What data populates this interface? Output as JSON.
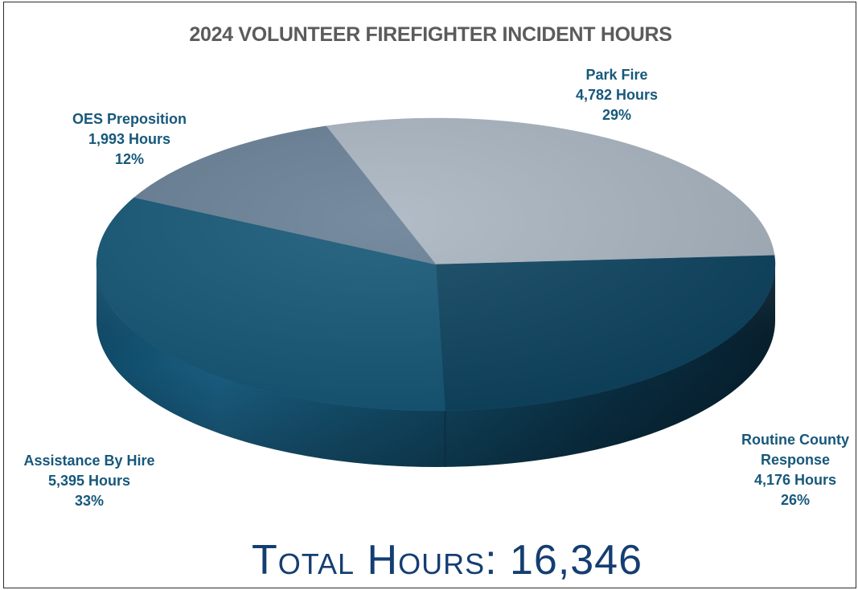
{
  "chart_data": {
    "type": "pie",
    "title": "2024 VOLUNTEER FIREFIGHTER INCIDENT HOURS",
    "slices": [
      {
        "name": "Park Fire",
        "hours_label": "4,782 Hours",
        "percent_label": "29%",
        "value": 4782,
        "color": "#a9b5c1"
      },
      {
        "name": "Routine County Response",
        "name_line1": "Routine County",
        "name_line2": "Response",
        "hours_label": "4,176 Hours",
        "percent_label": "26%",
        "value": 4176,
        "color": "#0e4460"
      },
      {
        "name": "Assistance By Hire",
        "hours_label": "5,395 Hours",
        "percent_label": "33%",
        "value": 5395,
        "color": "#155777"
      },
      {
        "name": "OES Preposition",
        "hours_label": "1,993 Hours",
        "percent_label": "12%",
        "value": 1993,
        "color": "#687f95"
      }
    ],
    "total_label": "Total Hours: 16,346",
    "total": 16346
  }
}
